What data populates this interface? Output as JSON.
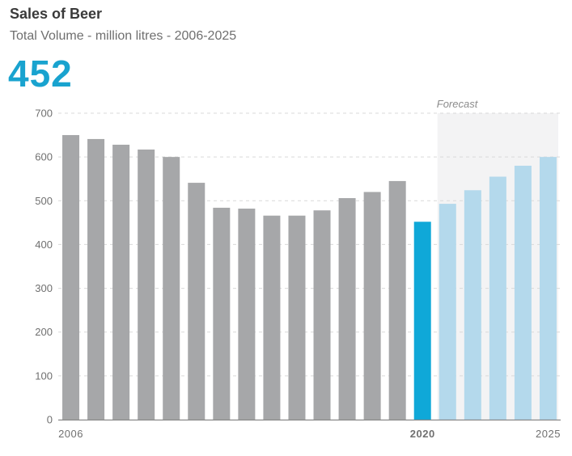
{
  "header": {
    "title": "Sales of Beer",
    "subtitle": "Total Volume - million litres - 2006-2025",
    "headline_value": "452"
  },
  "colors": {
    "title": "#3a3a3a",
    "subtitle": "#6f6f6f",
    "headline": "#19a3cf",
    "historical_bar": "#a6a7a9",
    "current_bar": "#0fa8d8",
    "forecast_bar": "#b4d9ec",
    "forecast_band": "#f3f3f4",
    "gridline": "#d9d9d9",
    "axis": "#888888"
  },
  "chart_data": {
    "type": "bar",
    "title": "Sales of Beer",
    "subtitle": "Total Volume - million litres - 2006-2025",
    "xlabel": "",
    "ylabel": "",
    "ylim": [
      0,
      700
    ],
    "yticks": [
      0,
      100,
      200,
      300,
      400,
      500,
      600,
      700
    ],
    "grid": true,
    "categories": [
      2006,
      2007,
      2008,
      2009,
      2010,
      2011,
      2012,
      2013,
      2014,
      2015,
      2016,
      2017,
      2018,
      2019,
      2020,
      2021,
      2022,
      2023,
      2024,
      2025
    ],
    "values": [
      650,
      641,
      628,
      617,
      600,
      541,
      484,
      482,
      466,
      466,
      478,
      506,
      520,
      545,
      452,
      493,
      524,
      555,
      580,
      600
    ],
    "bar_roles": [
      "historical",
      "historical",
      "historical",
      "historical",
      "historical",
      "historical",
      "historical",
      "historical",
      "historical",
      "historical",
      "historical",
      "historical",
      "historical",
      "historical",
      "current",
      "forecast",
      "forecast",
      "forecast",
      "forecast",
      "forecast"
    ],
    "x_tick_labels": [
      {
        "year": 2006,
        "label": "2006",
        "highlight": false
      },
      {
        "year": 2020,
        "label": "2020",
        "highlight": true
      },
      {
        "year": 2025,
        "label": "2025",
        "highlight": false
      }
    ],
    "forecast_region": {
      "from_year": 2021,
      "to_year": 2025,
      "label": "Forecast"
    }
  }
}
